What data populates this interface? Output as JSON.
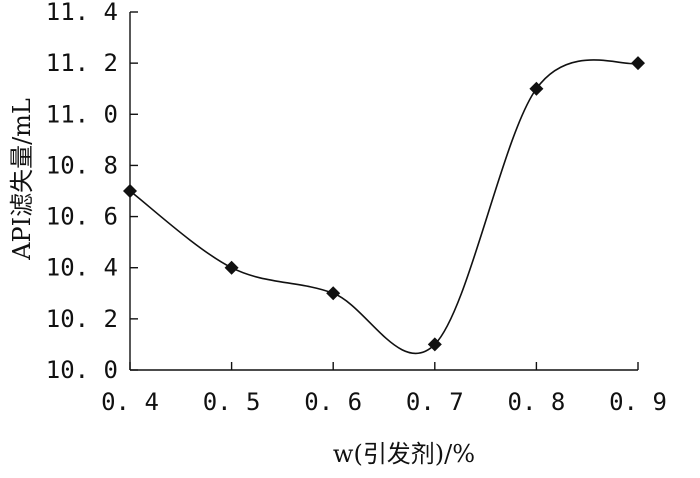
{
  "chart_data": {
    "type": "line",
    "x": [
      0.4,
      0.5,
      0.6,
      0.7,
      0.8,
      0.9
    ],
    "series": [
      {
        "values": [
          10.7,
          10.4,
          10.3,
          10.1,
          11.1,
          11.2
        ]
      }
    ],
    "xlabel": "w(引发剂)/%",
    "ylabel": "API滤失量/mL",
    "xlim": [
      0.4,
      0.9
    ],
    "ylim": [
      10.0,
      11.4
    ],
    "x_ticks": [
      0.4,
      0.5,
      0.6,
      0.7,
      0.8,
      0.9
    ],
    "x_tick_labels": [
      "0. 4",
      "0. 5",
      "0. 6",
      "0. 7",
      "0. 8",
      "0. 9"
    ],
    "y_ticks": [
      10.0,
      10.2,
      10.4,
      10.6,
      10.8,
      11.0,
      11.2,
      11.4
    ],
    "y_tick_labels": [
      "10. 0",
      "10. 2",
      "10. 4",
      "10. 6",
      "10. 8",
      "11. 0",
      "11. 2",
      "11. 4"
    ],
    "grid": false,
    "legend": "none",
    "marker": "diamond",
    "line_style": "smooth",
    "colors": {
      "line": "#111111",
      "marker": "#111111",
      "axis": "#111111",
      "background": "#ffffff"
    }
  }
}
